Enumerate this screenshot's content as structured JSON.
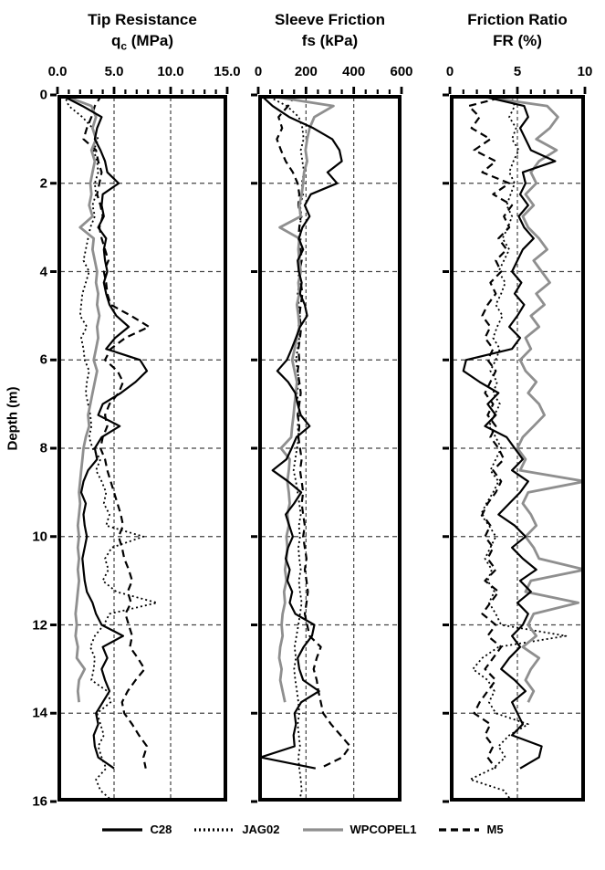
{
  "figure": {
    "background": "#ffffff",
    "ink_color": "#000000",
    "gray_series_color": "#8f8f8f"
  },
  "depth_axis": {
    "label": "Depth (m)",
    "lim": [
      0,
      16
    ],
    "tick_step": 2,
    "tick_labels": [
      "0",
      "2",
      "4",
      "6",
      "8",
      "10",
      "12",
      "14",
      "16"
    ],
    "grid_step": 2,
    "depth_step": 0.25
  },
  "legend": {
    "items": [
      {
        "label": "C28",
        "pattern": "solid",
        "color": "#000000"
      },
      {
        "label": "JAG02",
        "pattern": "dotted",
        "color": "#000000"
      },
      {
        "label": "WPCOPEL1",
        "pattern": "solid",
        "color": "#8f8f8f"
      },
      {
        "label": "M5",
        "pattern": "dashed",
        "color": "#000000"
      }
    ]
  },
  "chart_data": [
    {
      "type": "line",
      "orientation": "depth-profile",
      "title": "Tip Resistance",
      "unit_pre": "q",
      "unit_sub": "c",
      "unit_post": " (MPa)",
      "xlim": [
        0,
        15
      ],
      "xticks": {
        "values": [
          0,
          5,
          10,
          15
        ],
        "labels": [
          "0.0",
          "5.0",
          "10.0",
          "15.0"
        ]
      },
      "minor_tick_step": 1,
      "gridlines_x": [
        5,
        10
      ],
      "grid": true,
      "series": [
        {
          "name": "C28",
          "pattern": "solid",
          "color": "#000000",
          "width": 2.2,
          "values": [
            0.3,
            2.2,
            3.9,
            3.5,
            3.3,
            3.8,
            4.2,
            4.4,
            5.4,
            4.0,
            3.9,
            4.1,
            3.6,
            4.3,
            4.1,
            4.2,
            4.4,
            4.1,
            4.3,
            4.6,
            5.2,
            6.3,
            5.1,
            4.3,
            7.3,
            7.9,
            6.9,
            5.6,
            4.0,
            3.6,
            5.5,
            3.9,
            3.3,
            3.5,
            2.7,
            2.3,
            2.1,
            2.5,
            2.3,
            2.4,
            2.6,
            2.4,
            2.2,
            2.3,
            2.4,
            2.6,
            3.1,
            3.4,
            3.9,
            5.8,
            4.0,
            4.4,
            3.9,
            4.2,
            4.6,
            4.0,
            3.4,
            3.6,
            3.2,
            3.3,
            3.6,
            5.0,
            null,
            null,
            null
          ]
        },
        {
          "name": "JAG02",
          "pattern": "dotted",
          "color": "#000000",
          "width": 1.8,
          "values": [
            0.6,
            1.0,
            2.2,
            3.1,
            3.6,
            3.2,
            3.5,
            3.6,
            3.3,
            3.4,
            3.1,
            3.3,
            2.9,
            2.7,
            2.5,
            2.3,
            2.8,
            2.5,
            2.2,
            2.1,
            2.0,
            2.6,
            2.1,
            2.3,
            2.4,
            2.8,
            2.6,
            2.5,
            2.7,
            2.9,
            3.0,
            2.8,
            3.1,
            3.8,
            3.4,
            3.9,
            4.3,
            4.1,
            4.6,
            4.3,
            7.6,
            4.8,
            4.2,
            4.5,
            4.0,
            5.2,
            8.8,
            4.6,
            4.1,
            3.3,
            2.9,
            3.3,
            3.2,
            3.0,
            4.4,
            4.7,
            3.5,
            3.8,
            4.1,
            3.6,
            3.9,
            4.3,
            3.4,
            3.8,
            4.9
          ]
        },
        {
          "name": "WPCOPEL1",
          "pattern": "solid",
          "color": "#8f8f8f",
          "width": 2.8,
          "values": [
            0.4,
            3.0,
            3.4,
            3.1,
            3.4,
            3.0,
            3.3,
            3.1,
            2.9,
            3.0,
            2.8,
            3.1,
            2.0,
            3.2,
            3.1,
            3.3,
            3.5,
            3.4,
            3.6,
            3.5,
            3.7,
            3.5,
            3.6,
            3.4,
            3.2,
            3.5,
            3.3,
            3.1,
            2.9,
            2.7,
            2.8,
            2.5,
            2.3,
            2.2,
            2.1,
            2.0,
            1.9,
            2.0,
            1.9,
            1.8,
            1.9,
            1.8,
            1.9,
            1.8,
            1.9,
            1.8,
            1.7,
            1.6,
            1.7,
            1.6,
            1.8,
            1.7,
            2.4,
            1.9,
            1.8,
            1.9,
            null,
            null,
            null,
            null,
            null,
            null,
            null,
            null,
            null
          ]
        },
        {
          "name": "M5",
          "pattern": "dashed",
          "color": "#000000",
          "width": 2.2,
          "values": [
            3.9,
            3.3,
            3.0,
            2.6,
            2.3,
            3.4,
            3.6,
            3.9,
            3.7,
            3.5,
            3.8,
            4.0,
            3.7,
            3.9,
            4.2,
            4.5,
            4.1,
            4.3,
            4.4,
            4.7,
            6.5,
            8.1,
            6.0,
            4.7,
            4.2,
            5.3,
            5.8,
            5.4,
            4.6,
            4.2,
            4.4,
            4.0,
            3.8,
            4.2,
            4.4,
            4.7,
            5.0,
            5.3,
            5.6,
            5.8,
            5.4,
            5.7,
            5.9,
            6.3,
            6.6,
            6.2,
            6.5,
            6.0,
            6.3,
            6.6,
            6.4,
            7.1,
            7.7,
            6.9,
            6.2,
            5.7,
            5.9,
            6.6,
            7.2,
            7.9,
            7.6,
            7.8,
            null,
            null,
            null
          ]
        }
      ]
    },
    {
      "type": "line",
      "orientation": "depth-profile",
      "title": "Sleeve Friction",
      "unit_pre": "fs",
      "unit_sub": "",
      "unit_post": " (kPa)",
      "xlim": [
        0,
        600
      ],
      "xticks": {
        "values": [
          0,
          200,
          400,
          600
        ],
        "labels": [
          "0",
          "200",
          "400",
          "600"
        ]
      },
      "minor_tick_step": 50,
      "gridlines_x": [
        200,
        400
      ],
      "grid": true,
      "series": [
        {
          "name": "C28",
          "pattern": "solid",
          "color": "#000000",
          "width": 2.2,
          "values": [
            10,
            60,
            130,
            230,
            310,
            340,
            350,
            290,
            330,
            220,
            195,
            215,
            185,
            170,
            188,
            165,
            170,
            182,
            175,
            195,
            205,
            175,
            158,
            140,
            120,
            80,
            125,
            155,
            165,
            178,
            215,
            160,
            140,
            118,
            60,
            125,
            180,
            150,
            115,
            130,
            145,
            125,
            115,
            132,
            122,
            142,
            132,
            155,
            235,
            225,
            190,
            165,
            172,
            188,
            255,
            180,
            152,
            158,
            148,
            152,
            10,
            240,
            null,
            null,
            null
          ]
        },
        {
          "name": "JAG02",
          "pattern": "dotted",
          "color": "#000000",
          "width": 1.8,
          "values": [
            30,
            120,
            170,
            185,
            190,
            178,
            185,
            192,
            182,
            188,
            175,
            182,
            172,
            178,
            170,
            175,
            168,
            172,
            165,
            170,
            175,
            168,
            172,
            165,
            158,
            165,
            170,
            162,
            168,
            172,
            165,
            170,
            162,
            155,
            148,
            158,
            165,
            172,
            178,
            170,
            175,
            168,
            172,
            178,
            170,
            175,
            182,
            175,
            168,
            160,
            152,
            158,
            150,
            155,
            162,
            168,
            172,
            165,
            170,
            175,
            168,
            172,
            178,
            182,
            172
          ]
        },
        {
          "name": "WPCOPEL1",
          "pattern": "solid",
          "color": "#8f8f8f",
          "width": 2.8,
          "values": [
            20,
            315,
            235,
            215,
            205,
            198,
            205,
            192,
            188,
            182,
            172,
            178,
            90,
            172,
            168,
            172,
            178,
            168,
            172,
            162,
            168,
            172,
            162,
            152,
            142,
            152,
            162,
            158,
            152,
            148,
            142,
            138,
            95,
            132,
            128,
            122,
            128,
            132,
            122,
            128,
            118,
            122,
            118,
            112,
            118,
            108,
            112,
            102,
            98,
            102,
            92,
            88,
            98,
            92,
            102,
            112,
            null,
            null,
            null,
            null,
            null,
            null,
            null,
            null,
            null
          ]
        },
        {
          "name": "M5",
          "pattern": "dashed",
          "color": "#000000",
          "width": 2.2,
          "values": [
            155,
            125,
            85,
            100,
            78,
            95,
            115,
            145,
            165,
            172,
            168,
            178,
            172,
            168,
            178,
            182,
            172,
            178,
            185,
            178,
            172,
            180,
            175,
            168,
            172,
            165,
            172,
            178,
            172,
            165,
            172,
            168,
            175,
            182,
            175,
            182,
            188,
            182,
            188,
            195,
            188,
            195,
            202,
            195,
            202,
            208,
            202,
            195,
            205,
            215,
            262,
            245,
            232,
            245,
            252,
            262,
            272,
            305,
            345,
            385,
            352,
            258,
            null,
            null,
            null
          ]
        }
      ]
    },
    {
      "type": "line",
      "orientation": "depth-profile",
      "title": "Friction Ratio",
      "unit_pre": "FR",
      "unit_sub": "",
      "unit_post": " (%)",
      "xlim": [
        0,
        10
      ],
      "xticks": {
        "values": [
          0,
          5,
          10
        ],
        "labels": [
          "0",
          "5",
          "10"
        ]
      },
      "minor_tick_step": 1,
      "gridlines_x": [
        5
      ],
      "grid": true,
      "series": [
        {
          "name": "C28",
          "pattern": "solid",
          "color": "#000000",
          "width": 2.2,
          "values": [
            2.0,
            5.5,
            5.8,
            5.2,
            5.6,
            6.0,
            7.8,
            5.4,
            5.6,
            5.2,
            5.8,
            5.1,
            5.5,
            6.2,
            5.4,
            5.0,
            4.6,
            5.3,
            4.8,
            5.5,
            5.0,
            4.4,
            5.2,
            4.6,
            1.2,
            1.0,
            2.2,
            3.6,
            2.8,
            3.4,
            2.6,
            4.2,
            4.8,
            5.4,
            4.6,
            5.8,
            5.2,
            4.4,
            3.6,
            4.8,
            5.6,
            4.6,
            5.4,
            6.4,
            5.2,
            6.0,
            5.0,
            5.8,
            5.4,
            4.6,
            5.2,
            4.4,
            3.8,
            4.8,
            5.6,
            4.6,
            5.0,
            5.4,
            4.6,
            6.8,
            6.6,
            5.2,
            null,
            null,
            null
          ]
        },
        {
          "name": "JAG02",
          "pattern": "dotted",
          "color": "#000000",
          "width": 1.8,
          "values": [
            4.5,
            4.8,
            4.4,
            4.9,
            4.6,
            5.1,
            4.7,
            4.4,
            4.8,
            4.5,
            4.2,
            4.6,
            4.3,
            3.9,
            4.4,
            4.0,
            3.6,
            4.1,
            3.8,
            3.4,
            3.9,
            3.5,
            3.2,
            3.7,
            3.4,
            3.0,
            3.5,
            3.2,
            3.7,
            3.3,
            2.9,
            3.4,
            3.8,
            3.4,
            3.0,
            3.6,
            3.2,
            2.7,
            2.3,
            2.9,
            3.4,
            3.0,
            2.6,
            3.1,
            2.8,
            3.3,
            2.9,
            3.4,
            3.8,
            8.6,
            3.6,
            2.4,
            1.7,
            2.8,
            3.3,
            2.9,
            3.4,
            5.8,
            4.4,
            3.6,
            4.1,
            3.2,
            1.5,
            4.0,
            4.6
          ]
        },
        {
          "name": "WPCOPEL1",
          "pattern": "solid",
          "color": "#8f8f8f",
          "width": 2.8,
          "values": [
            1.5,
            7.2,
            8.0,
            7.4,
            6.4,
            7.9,
            6.6,
            6.0,
            6.4,
            5.6,
            6.2,
            5.4,
            5.8,
            6.6,
            7.2,
            6.2,
            6.8,
            7.4,
            6.4,
            7.0,
            6.0,
            6.6,
            5.6,
            6.0,
            5.2,
            5.6,
            6.4,
            5.8,
            6.6,
            7.0,
            6.2,
            5.4,
            5.0,
            5.6,
            5.2,
            10.0,
            5.8,
            5.4,
            6.0,
            6.4,
            5.6,
            6.2,
            6.6,
            10.0,
            6.0,
            5.6,
            9.5,
            6.2,
            5.8,
            6.4,
            5.4,
            6.6,
            6.0,
            5.6,
            6.2,
            5.8,
            null,
            null,
            null,
            null,
            null,
            null,
            null,
            null,
            null
          ]
        },
        {
          "name": "M5",
          "pattern": "dashed",
          "color": "#000000",
          "width": 2.2,
          "values": [
            4.5,
            1.4,
            2.2,
            1.6,
            3.0,
            1.8,
            3.4,
            2.4,
            4.4,
            3.2,
            4.6,
            4.0,
            4.4,
            3.6,
            4.2,
            3.4,
            3.8,
            3.0,
            3.4,
            2.8,
            2.4,
            3.0,
            2.6,
            3.2,
            2.8,
            3.4,
            3.0,
            2.6,
            3.2,
            2.8,
            3.4,
            3.0,
            3.6,
            4.0,
            3.2,
            3.8,
            3.4,
            2.8,
            2.4,
            3.0,
            2.6,
            3.2,
            2.8,
            3.4,
            2.6,
            3.6,
            3.0,
            2.4,
            3.4,
            2.8,
            3.8,
            3.2,
            2.6,
            3.4,
            2.8,
            2.2,
            1.8,
            3.0,
            2.6,
            3.2,
            2.8,
            3.4,
            null,
            null,
            null
          ]
        }
      ]
    }
  ]
}
